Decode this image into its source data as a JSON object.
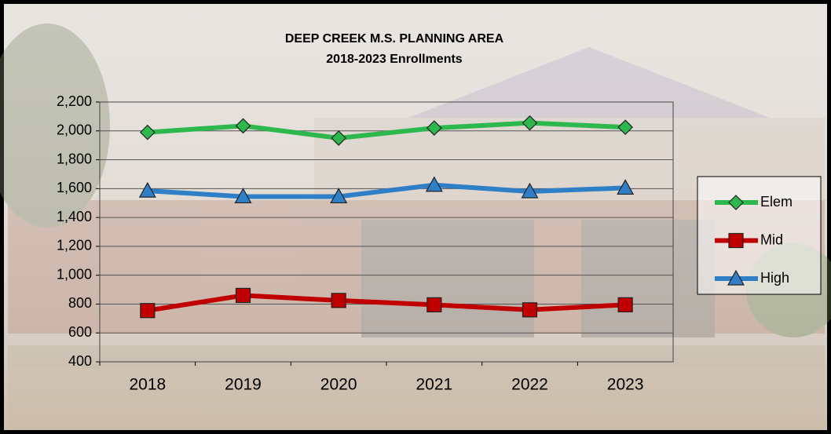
{
  "chart_data": {
    "type": "line",
    "title": "DEEP CREEK M.S. PLANNING AREA",
    "subtitle": "2018-2023 Enrollments",
    "categories": [
      "2018",
      "2019",
      "2020",
      "2021",
      "2022",
      "2023"
    ],
    "series": [
      {
        "name": "Elem",
        "color": "#2db84d",
        "marker": "diamond",
        "values": [
          1990,
          2035,
          1950,
          2020,
          2055,
          2025
        ]
      },
      {
        "name": "Mid",
        "color": "#c00000",
        "marker": "square",
        "values": [
          755,
          860,
          825,
          795,
          760,
          795
        ]
      },
      {
        "name": "High",
        "color": "#2f7fc6",
        "marker": "triangle",
        "values": [
          1585,
          1545,
          1545,
          1625,
          1580,
          1605
        ]
      }
    ],
    "ylim": [
      400,
      2200
    ],
    "yticks": [
      400,
      600,
      800,
      {
        "value": 1000,
        "label": "1,000"
      },
      {
        "value": 1200,
        "label": "1,200"
      },
      {
        "value": 1400,
        "label": "1,400"
      },
      {
        "value": 1600,
        "label": "1,600"
      },
      {
        "value": 1800,
        "label": "1,800"
      },
      {
        "value": 2000,
        "label": "2,000"
      },
      {
        "value": 2200,
        "label": "2,200"
      }
    ],
    "grid": true,
    "legend": "right"
  }
}
